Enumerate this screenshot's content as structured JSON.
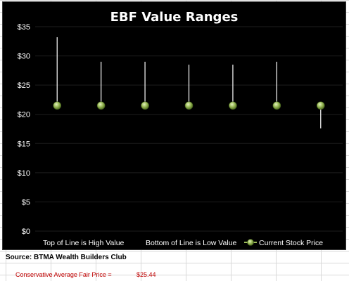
{
  "title": "EBF Value Ranges",
  "colors": {
    "background": "#000000",
    "line": "#ffffff",
    "marker": "#9bbb59",
    "text": "#ffffff",
    "footer_red": "#c00000"
  },
  "chart_data": {
    "type": "scatter",
    "title": "EBF Value Ranges",
    "ylim": [
      0,
      35
    ],
    "yticks": [
      "$0",
      "$5",
      "$10",
      "$15",
      "$20",
      "$25",
      "$30",
      "$35"
    ],
    "ytick_values": [
      0,
      5,
      10,
      15,
      20,
      25,
      30,
      35
    ],
    "grid": true,
    "categories": [
      "1",
      "2",
      "3",
      "4",
      "5",
      "6",
      "7"
    ],
    "high": [
      33.2,
      29.0,
      29.0,
      28.5,
      28.5,
      29.0,
      21.5
    ],
    "low": [
      21.5,
      21.5,
      21.5,
      21.5,
      21.5,
      21.5,
      17.6
    ],
    "current_price": [
      21.5,
      21.5,
      21.5,
      21.5,
      21.5,
      21.5,
      21.5
    ],
    "legend": {
      "placement": "bottom",
      "high_label": "Top of Line is High Value",
      "low_label": "Bottom of Line is Low Value",
      "price_label": "Current Stock Price"
    }
  },
  "footer": {
    "source": "Source: BTMA Wealth Builders Club",
    "fair_label": "Conservative Average Fair Price =",
    "fair_value": "$25.44"
  }
}
